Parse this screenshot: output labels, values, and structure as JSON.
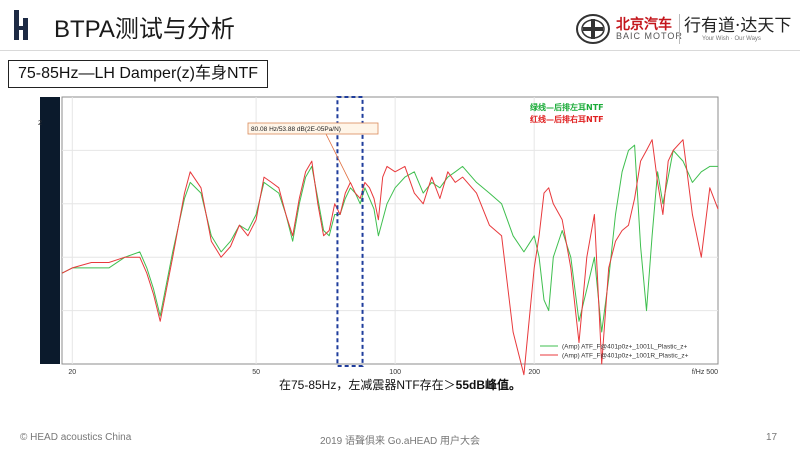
{
  "header": {
    "title": "BTPA测试与分析",
    "logo_icon": "brand-logo-icon"
  },
  "brand": {
    "name": "北京汽车",
    "sub": "BAIC MOTOR",
    "slogan": "行有道·达天下",
    "slogan_en": "Your Wish · Our Ways"
  },
  "subtitle": "75-85Hz—LH Damper(z)车身NTF",
  "caption": {
    "prefix": "在75-85Hz，左减震器NTF存在＞",
    "emphasis": "55dB峰值。"
  },
  "footer": {
    "left": "© HEAD acoustics China",
    "center": "2019 语聲俱来 Go.aHEAD 用户大会",
    "page": "17"
  },
  "chart_data": {
    "type": "line",
    "xscale": "log",
    "xlim": [
      19,
      500
    ],
    "ylim": [
      20,
      70
    ],
    "grid": true,
    "x_ticks": [
      "20",
      "50",
      "100",
      "200"
    ],
    "x_unit_label": "f/Hz 500",
    "y_tick_partial": "2",
    "legend_placement": "bottom-right",
    "highlight_band": [
      75,
      85
    ],
    "annotation": {
      "text": "80.08 Hz/53.88 dB(2E-05Pa/N)",
      "x": 80,
      "y": 53.9
    },
    "header_legend": [
      {
        "text": "绿线—后排左耳NTF",
        "color": "#1aab38"
      },
      {
        "text": "红线—后排右耳NTF",
        "color": "#e02020"
      }
    ],
    "series": [
      {
        "name": "(Amp) ATF_F@401p0z+_1001L_Plastic_z+",
        "color": "#3fbf4f",
        "x": [
          19,
          20,
          22,
          24,
          26,
          28,
          29,
          30,
          31,
          33,
          35,
          36,
          38,
          40,
          42,
          44,
          46,
          48,
          50,
          52,
          54,
          56,
          58,
          60,
          62,
          64,
          66,
          68,
          70,
          72,
          74,
          76,
          78,
          80,
          82,
          84,
          86,
          88,
          90,
          92,
          94,
          96,
          100,
          105,
          110,
          115,
          120,
          125,
          130,
          135,
          140,
          150,
          160,
          170,
          180,
          190,
          200,
          205,
          210,
          215,
          220,
          230,
          240,
          250,
          260,
          270,
          280,
          290,
          300,
          310,
          320,
          330,
          340,
          350,
          360,
          370,
          380,
          390,
          400,
          420,
          440,
          460,
          480,
          500
        ],
        "y": [
          37,
          38,
          38,
          38,
          40,
          41,
          38,
          34,
          29,
          41,
          51,
          54,
          52,
          44,
          41,
          43,
          46,
          45,
          48,
          54,
          53,
          52,
          48,
          43,
          50,
          55,
          57,
          51,
          45,
          44,
          48,
          48,
          51,
          53,
          52,
          50,
          53,
          51,
          49,
          44,
          47,
          50,
          53,
          55,
          56,
          52,
          54,
          53,
          55,
          56,
          57,
          54,
          52,
          50,
          44,
          41,
          44,
          40,
          32,
          30,
          40,
          45,
          40,
          28,
          34,
          40,
          26,
          36,
          48,
          56,
          60,
          61,
          42,
          30,
          44,
          56,
          50,
          55,
          60,
          58,
          54,
          56,
          57,
          57
        ]
      },
      {
        "name": "(Amp) ATF_F@401p0z+_1001R_Plastic_z+",
        "color": "#e8393c",
        "x": [
          19,
          20,
          22,
          24,
          26,
          28,
          29,
          30,
          31,
          33,
          35,
          36,
          38,
          40,
          42,
          44,
          46,
          48,
          50,
          52,
          54,
          56,
          58,
          60,
          62,
          64,
          66,
          68,
          70,
          72,
          74,
          76,
          78,
          80,
          82,
          84,
          86,
          88,
          90,
          92,
          94,
          96,
          100,
          105,
          110,
          115,
          120,
          125,
          130,
          135,
          140,
          150,
          160,
          170,
          180,
          190,
          200,
          205,
          210,
          215,
          220,
          230,
          240,
          250,
          260,
          270,
          280,
          290,
          300,
          310,
          320,
          330,
          340,
          350,
          360,
          370,
          380,
          390,
          400,
          420,
          440,
          460,
          480,
          500
        ],
        "y": [
          37,
          38,
          39,
          39,
          40,
          40,
          37,
          33,
          28,
          40,
          52,
          56,
          53,
          43,
          40,
          42,
          46,
          44,
          47,
          55,
          54,
          53,
          48,
          44,
          51,
          56,
          58,
          50,
          44,
          45,
          50,
          48,
          52,
          54,
          52,
          51,
          54,
          53,
          51,
          47,
          55,
          57,
          56,
          57,
          52,
          50,
          55,
          51,
          56,
          54,
          55,
          52,
          46,
          44,
          26,
          18,
          38,
          44,
          52,
          53,
          50,
          47,
          38,
          24,
          40,
          48,
          20,
          38,
          43,
          45,
          46,
          51,
          58,
          60,
          62,
          54,
          48,
          58,
          60,
          62,
          48,
          40,
          53,
          49
        ]
      }
    ]
  }
}
